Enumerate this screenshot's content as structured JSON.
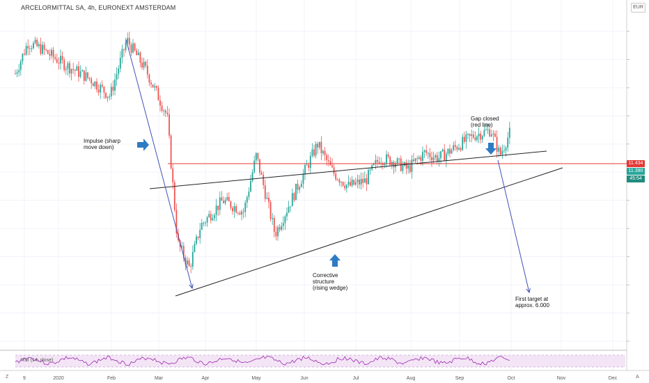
{
  "header": {
    "title": "ARCELORMITTAL SA, 4h, EURONEXT AMSTERDAM",
    "currency": "EUR"
  },
  "price_tags": {
    "red_line_price": "11.434",
    "last_price": "11.390",
    "countdown": "45:54"
  },
  "annotations": {
    "impulse": [
      "Impulse (sharp",
      "move down)"
    ],
    "gap_closed": [
      "Gap closed",
      "(red line)"
    ],
    "corrective": [
      "Corrective",
      "structure",
      "(rising wedge)"
    ],
    "target": [
      "First target at",
      "approx. 6.000"
    ]
  },
  "indicator": {
    "label": "RSI (14, close)"
  },
  "scale_buttons": {
    "left": "Z",
    "right": "A"
  },
  "colors": {
    "up_candle": "#26a69a",
    "down_candle": "#ef5350",
    "red_line": "#e53935",
    "trend_arrow": "#3f51b5",
    "annotation_arrow": "#2e7bc4",
    "rsi_line": "#9c27b0",
    "rsi_band": "#f3e5f5",
    "price_tag_red": "#e53935",
    "price_tag_green": "#26a69a",
    "countdown_tag": "#1f8c7e"
  },
  "chart_data": {
    "type": "candlestick",
    "x_tick_labels": [
      "9",
      "2020",
      "Feb",
      "Mar",
      "Apr",
      "May",
      "Jun",
      "Jul",
      "Aug",
      "Sep",
      "Oct",
      "Nov",
      "Dec"
    ],
    "ylim": [
      4,
      15
    ],
    "grid": true,
    "horizontal_line": 11.434,
    "price_path": [
      {
        "x": "Dec 2019",
        "y": 13.5
      },
      {
        "x": "late Dec 2019",
        "y": 14.6
      },
      {
        "x": "early Jan 2020",
        "y": 14.4
      },
      {
        "x": "mid Jan 2020",
        "y": 13.9
      },
      {
        "x": "late Jan 2020",
        "y": 13.3
      },
      {
        "x": "early Feb 2020",
        "y": 12.7
      },
      {
        "x": "mid Feb 2020",
        "y": 14.7
      },
      {
        "x": "late Feb 2020",
        "y": 13.6
      },
      {
        "x": "early Mar 2020",
        "y": 12.0
      },
      {
        "x": "mid Mar 2020",
        "y": 7.5
      },
      {
        "x": "late Mar 2020",
        "y": 6.6
      },
      {
        "x": "early Apr 2020",
        "y": 8.1
      },
      {
        "x": "mid Apr 2020",
        "y": 9.0
      },
      {
        "x": "late Apr 2020",
        "y": 8.6
      },
      {
        "x": "early May 2020",
        "y": 10.6
      },
      {
        "x": "mid May 2020",
        "y": 7.8
      },
      {
        "x": "late May 2020",
        "y": 9.1
      },
      {
        "x": "early Jun 2020",
        "y": 11.0
      },
      {
        "x": "mid Jun 2020",
        "y": 10.0
      },
      {
        "x": "late Jun 2020",
        "y": 9.5
      },
      {
        "x": "early Jul 2020",
        "y": 9.7
      },
      {
        "x": "mid Jul 2020",
        "y": 10.5
      },
      {
        "x": "late Jul 2020",
        "y": 10.4
      },
      {
        "x": "early Aug 2020",
        "y": 10.1
      },
      {
        "x": "mid Aug 2020",
        "y": 10.7
      },
      {
        "x": "late Aug 2020",
        "y": 10.5
      },
      {
        "x": "early Sep 2020",
        "y": 10.9
      },
      {
        "x": "mid Sep 2020",
        "y": 11.3
      },
      {
        "x": "late Sep 2020",
        "y": 11.5
      },
      {
        "x": "end Sep 2020",
        "y": 10.6
      },
      {
        "x": "early Oct 2020",
        "y": 11.39
      }
    ]
  }
}
